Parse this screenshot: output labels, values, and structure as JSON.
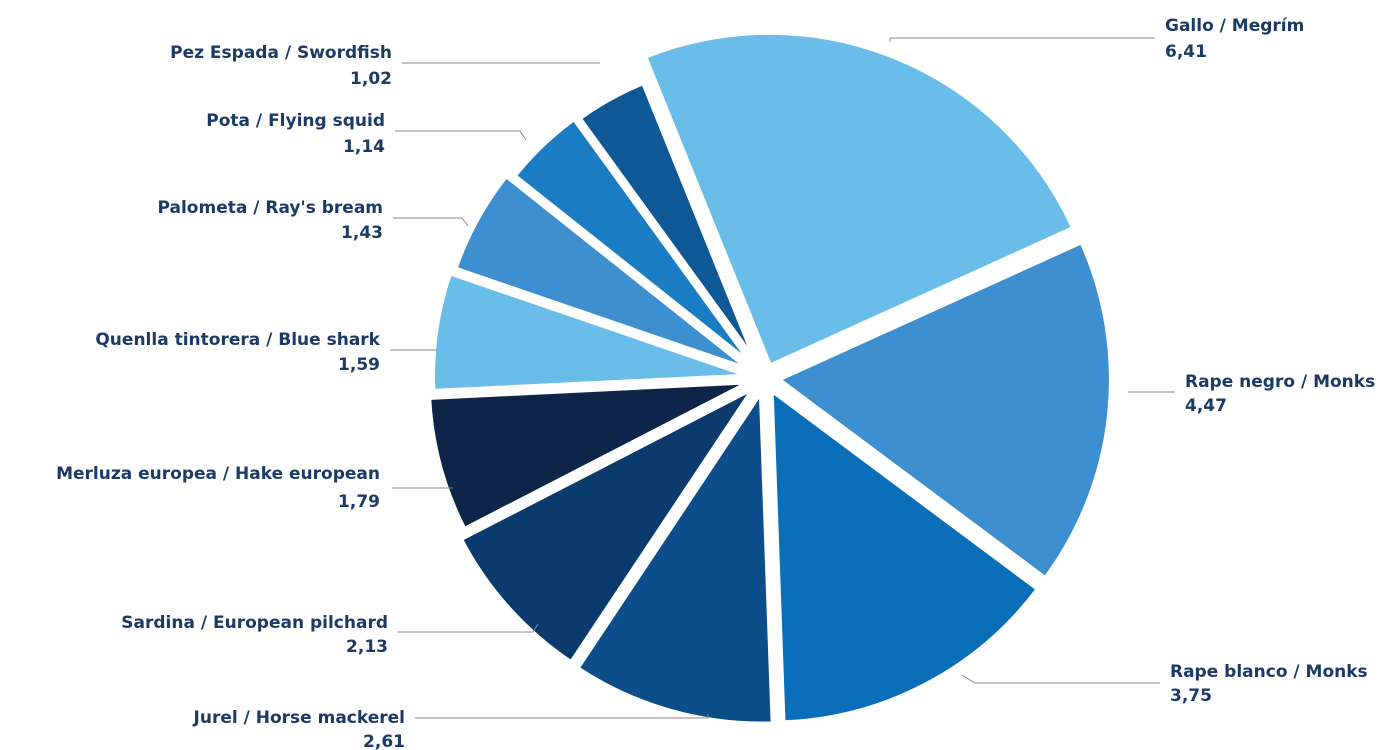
{
  "chart_data": {
    "type": "pie",
    "categories": [
      "Gallo / Megrím",
      "Rape negro / Monks",
      "Rape blanco / Monks",
      "Jurel / Horse mackerel",
      "Sardina / European pilchard",
      "Merluza europea / Hake european",
      "Quenlla tintorera / Blue shark",
      "Palometa / Ray's bream",
      "Pota / Flying squid",
      "Pez Espada / Swordfish"
    ],
    "values": [
      6.41,
      4.47,
      3.75,
      2.61,
      2.13,
      1.79,
      1.59,
      1.43,
      1.14,
      1.02
    ],
    "value_labels": [
      "6,41",
      "4,47",
      "3,75",
      "2,61",
      "2,13",
      "1,79",
      "1,59",
      "1,43",
      "1,14",
      "1,02"
    ],
    "colors": [
      "#6bbde9",
      "#3d8fd0",
      "#0a6fb8",
      "#0b4e8a",
      "#0b3a6d",
      "#0c2548",
      "#6bbde9",
      "#3d8fd0",
      "#1a7cc2",
      "#0f5896"
    ]
  }
}
